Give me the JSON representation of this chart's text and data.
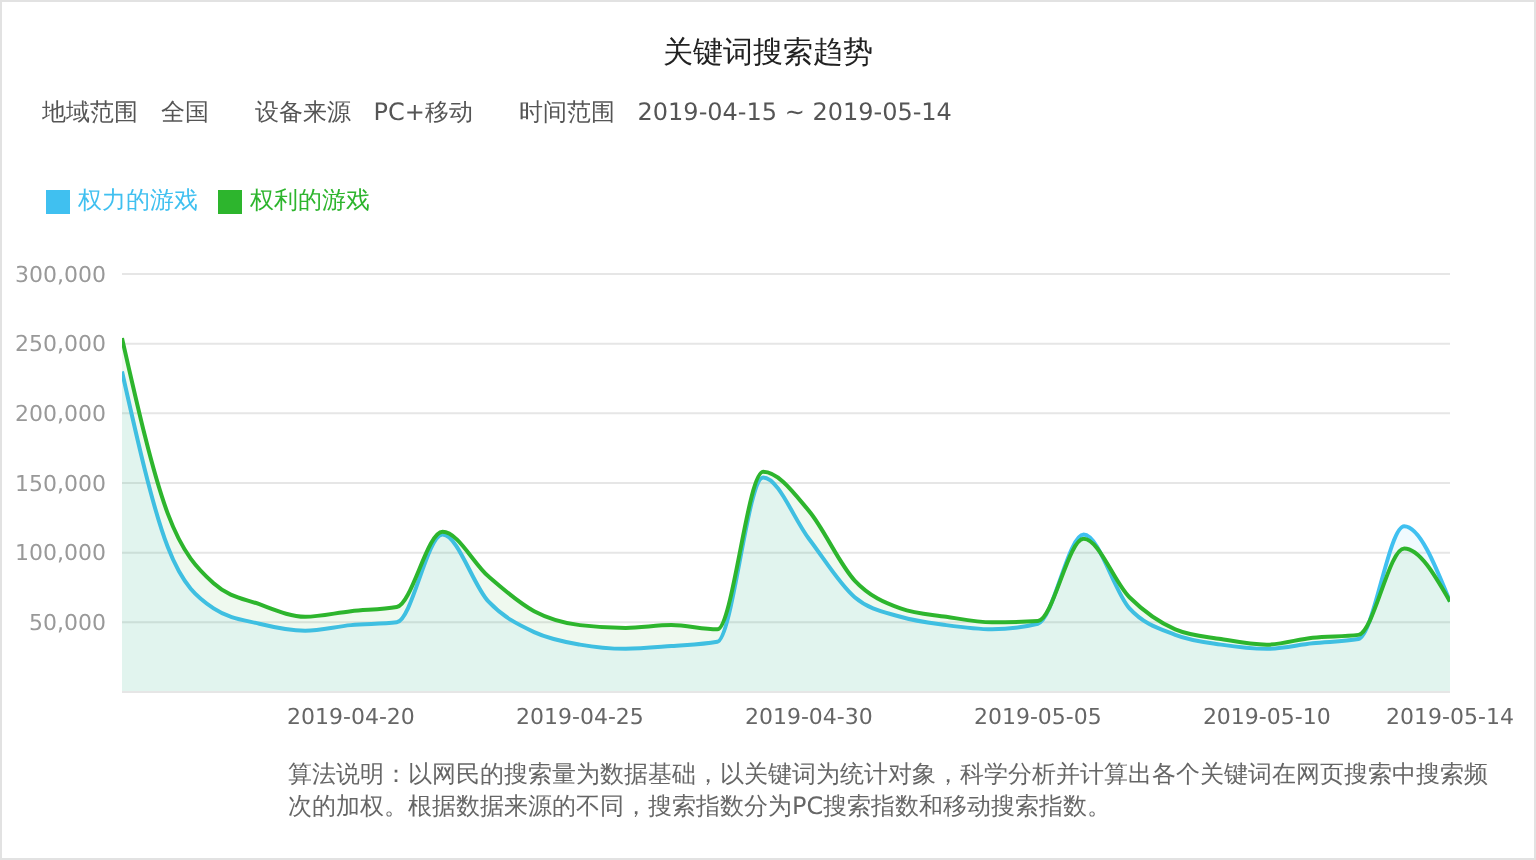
{
  "chart_data": {
    "type": "area",
    "title": "关键词搜索趋势",
    "subtitle": "地域范围   全国      设备来源   PC+移动      时间范围   2019-04-15 ~ 2019-05-14",
    "annotations": [
      "算法说明：以网民的搜索量为数据基础，以关键词为统计对象，科学分析并计算出各个关键词在网页搜索中搜索频次的加权。根据数据来源的不同，搜索指数分为PC搜索指数和移动搜索指数。"
    ],
    "x": [
      "2019-04-15",
      "2019-04-16",
      "2019-04-17",
      "2019-04-18",
      "2019-04-19",
      "2019-04-20",
      "2019-04-21",
      "2019-04-22",
      "2019-04-23",
      "2019-04-24",
      "2019-04-25",
      "2019-04-26",
      "2019-04-27",
      "2019-04-28",
      "2019-04-29",
      "2019-04-30",
      "2019-05-01",
      "2019-05-02",
      "2019-05-03",
      "2019-05-04",
      "2019-05-05",
      "2019-05-06",
      "2019-05-07",
      "2019-05-08",
      "2019-05-09",
      "2019-05-10",
      "2019-05-11",
      "2019-05-12",
      "2019-05-13",
      "2019-05-14"
    ],
    "series": [
      {
        "name": "权力的游戏",
        "color": "#40c0f0",
        "values": [
          230000,
          104000,
          60000,
          49000,
          44000,
          48000,
          50000,
          113000,
          65000,
          43000,
          34000,
          31000,
          33000,
          36000,
          154000,
          110000,
          68000,
          54000,
          48000,
          45000,
          49000,
          113000,
          60000,
          41000,
          34000,
          31000,
          35000,
          38000,
          119000,
          65000
        ]
      },
      {
        "name": "权利的游戏",
        "color": "#2db52d",
        "values": [
          254000,
          128000,
          78000,
          63000,
          54000,
          58000,
          61000,
          115000,
          83000,
          58000,
          48000,
          46000,
          48000,
          45000,
          158000,
          130000,
          80000,
          60000,
          54000,
          50000,
          51000,
          110000,
          68000,
          45000,
          38000,
          34000,
          39000,
          41000,
          103000,
          65000
        ]
      }
    ],
    "xlim": [
      "2019-04-15",
      "2019-05-14"
    ],
    "xticks": [
      "2019-04-20",
      "2019-04-25",
      "2019-04-30",
      "2019-05-05",
      "2019-05-10",
      "2019-05-14"
    ],
    "ylim": [
      0,
      300000
    ],
    "yticks": [
      {
        "value": 50000,
        "label": "50,000"
      },
      {
        "value": 100000,
        "label": "100,000"
      },
      {
        "value": 150000,
        "label": "150,000"
      },
      {
        "value": 200000,
        "label": "200,000"
      },
      {
        "value": 250000,
        "label": "250,000"
      },
      {
        "value": 300000,
        "label": "300,000"
      }
    ],
    "grid": "y",
    "legend": "top left"
  }
}
